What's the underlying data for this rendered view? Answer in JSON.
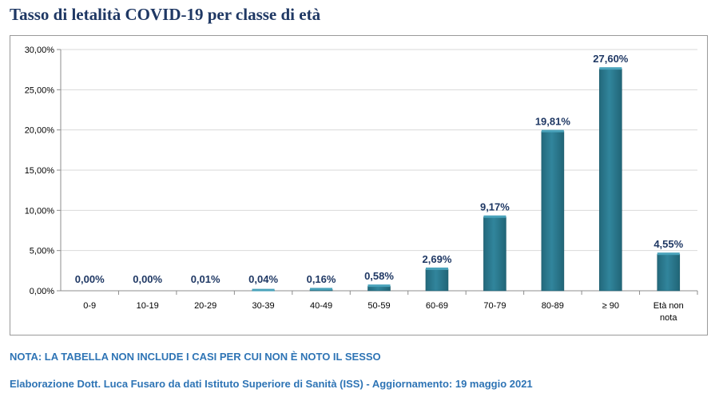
{
  "chart_data": {
    "type": "bar",
    "title": "Tasso di letalità COVID-19 per classe di età",
    "categories": [
      "0-9",
      "10-19",
      "20-29",
      "30-39",
      "40-49",
      "50-59",
      "60-69",
      "70-79",
      "80-89",
      "≥ 90",
      "Età non nota"
    ],
    "values": [
      0.0,
      0.0,
      0.01,
      0.04,
      0.16,
      0.58,
      2.69,
      9.17,
      19.81,
      27.6,
      4.55
    ],
    "data_labels": [
      "0,00%",
      "0,00%",
      "0,01%",
      "0,04%",
      "0,16%",
      "0,58%",
      "2,69%",
      "9,17%",
      "19,81%",
      "27,60%",
      "4,55%"
    ],
    "ylim": [
      0,
      30
    ],
    "yticks": [
      0,
      5,
      10,
      15,
      20,
      25,
      30
    ],
    "ytick_labels": [
      "0,00%",
      "5,00%",
      "10,00%",
      "15,00%",
      "20,00%",
      "25,00%",
      "30,00%"
    ],
    "grid": true,
    "legend": "none",
    "bar_color": "#31859c",
    "label_color": "#1f3864"
  },
  "note": "NOTA: LA TABELLA NON INCLUDE I CASI PER CUI NON È NOTO IL SESSO",
  "credit": "Elaborazione Dott. Luca Fusaro da dati Istituto Superiore di Sanità (ISS) - Aggiornamento: 19 maggio 2021"
}
